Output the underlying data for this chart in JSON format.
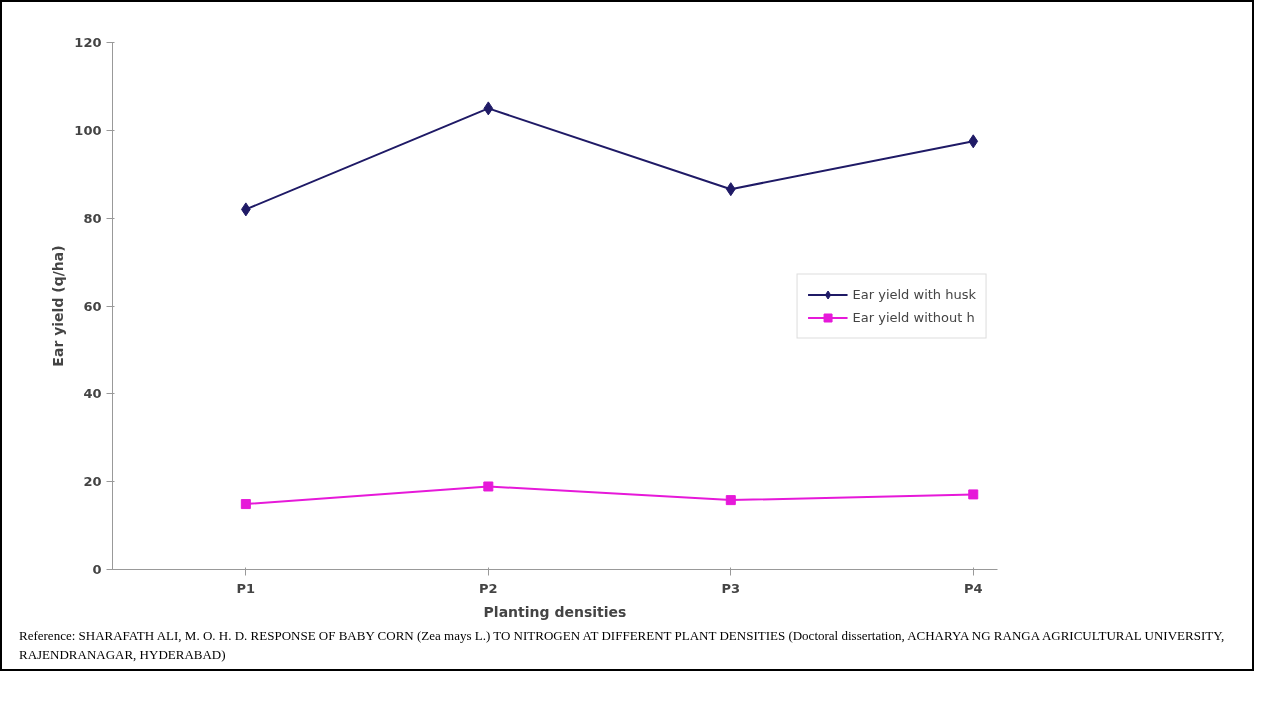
{
  "chart_data": {
    "type": "line",
    "xlabel": "Planting densities",
    "ylabel": "Ear yield (q/ha)",
    "categories": [
      "P1",
      "P2",
      "P3",
      "P4"
    ],
    "series": [
      {
        "name": "Ear yield with husk",
        "color": "#1f1a66",
        "marker": "diamond",
        "values": [
          82,
          105,
          86.6,
          97.5
        ]
      },
      {
        "name": "Ear yield without h",
        "color": "#e619d9",
        "marker": "square",
        "values": [
          14.9,
          18.9,
          15.8,
          17.1
        ]
      }
    ],
    "ylim": [
      0,
      120
    ],
    "yticks": [
      0,
      20,
      40,
      60,
      80,
      100,
      120
    ],
    "grid": false,
    "legend": "right",
    "annotations": [
      "Reference:  SHARAFATH ALI, M. O. H. D. RESPONSE OF BABY CORN (Zea mays L.) TO NITROGEN AT DIFFERENT PLANT DENSITIES (Doctoral dissertation, ACHARYA NG RANGA AGRICULTURAL UNIVERSITY, RAJENDRANAGAR, HYDERABAD)"
    ]
  }
}
